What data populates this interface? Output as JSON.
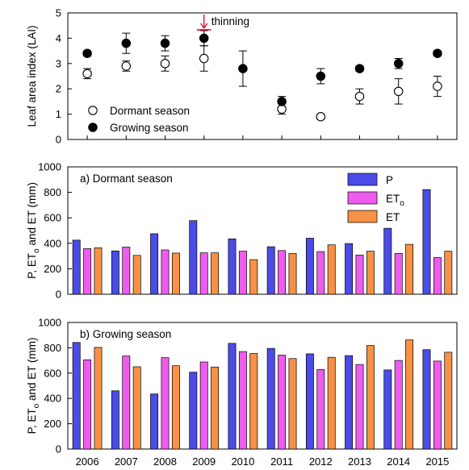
{
  "chart_data": [
    {
      "type": "scatter",
      "ylabel": "Leaf area index (LAI)",
      "ylim": [
        0,
        5
      ],
      "yticks": [
        0,
        1,
        2,
        3,
        4,
        5
      ],
      "x": [
        2006,
        2007,
        2008,
        2009,
        2010,
        2011,
        2012,
        2013,
        2014,
        2015
      ],
      "series": [
        {
          "name": "Dormant season",
          "marker": "open-circle",
          "values": [
            2.6,
            2.9,
            3.0,
            3.2,
            null,
            1.2,
            0.9,
            1.7,
            1.9,
            2.1
          ],
          "errors": [
            0.2,
            0.2,
            0.3,
            0.5,
            null,
            0.2,
            0.1,
            0.3,
            0.5,
            0.4
          ]
        },
        {
          "name": "Growing season",
          "marker": "filled-circle",
          "values": [
            3.4,
            3.8,
            3.8,
            4.0,
            2.8,
            1.5,
            2.5,
            2.8,
            3.0,
            3.4
          ],
          "errors": [
            0.1,
            0.4,
            0.3,
            0.3,
            0.7,
            0.2,
            0.3,
            0.1,
            0.2,
            0.1
          ]
        }
      ],
      "annotation": {
        "text": "thinning",
        "x": 2009,
        "color": "#e8001c"
      },
      "legend": "bottom-left"
    },
    {
      "type": "bar",
      "title": "a) Dormant season",
      "ylabel_parts": [
        "P, ET",
        "o",
        " and ET (mm)"
      ],
      "ylim": [
        0,
        1000
      ],
      "yticks": [
        0,
        200,
        400,
        600,
        800,
        1000
      ],
      "categories": [
        "2006",
        "2007",
        "2008",
        "2009",
        "2010",
        "2011",
        "2012",
        "2013",
        "2014",
        "2015"
      ],
      "series": [
        {
          "name": "P",
          "color": "#4b4be6",
          "values": [
            425,
            340,
            475,
            578,
            435,
            373,
            440,
            398,
            518,
            822
          ]
        },
        {
          "name": "ET",
          "subscript": "o",
          "color": "#ee5cee",
          "values": [
            358,
            370,
            348,
            325,
            338,
            343,
            335,
            308,
            320,
            288
          ]
        },
        {
          "name": "ET",
          "color": "#f79145",
          "values": [
            365,
            305,
            323,
            325,
            272,
            320,
            388,
            338,
            392,
            338
          ]
        }
      ],
      "legend": "top-right"
    },
    {
      "type": "bar",
      "title": "b) Growing season",
      "ylabel_parts": [
        "P, ET",
        "o",
        " and ET (mm)"
      ],
      "ylim": [
        0,
        1000
      ],
      "yticks": [
        0,
        200,
        400,
        600,
        800,
        1000
      ],
      "categories": [
        "2006",
        "2007",
        "2008",
        "2009",
        "2010",
        "2011",
        "2012",
        "2013",
        "2014",
        "2015"
      ],
      "series": [
        {
          "name": "P",
          "color": "#4b4be6",
          "values": [
            842,
            460,
            435,
            607,
            835,
            795,
            752,
            738,
            625,
            785
          ]
        },
        {
          "name": "ET",
          "subscript": "o",
          "color": "#ee5cee",
          "values": [
            705,
            735,
            722,
            688,
            770,
            742,
            628,
            668,
            700,
            695
          ]
        },
        {
          "name": "ET",
          "color": "#f79145",
          "values": [
            803,
            650,
            658,
            648,
            755,
            715,
            725,
            818,
            862,
            765
          ]
        }
      ]
    }
  ]
}
